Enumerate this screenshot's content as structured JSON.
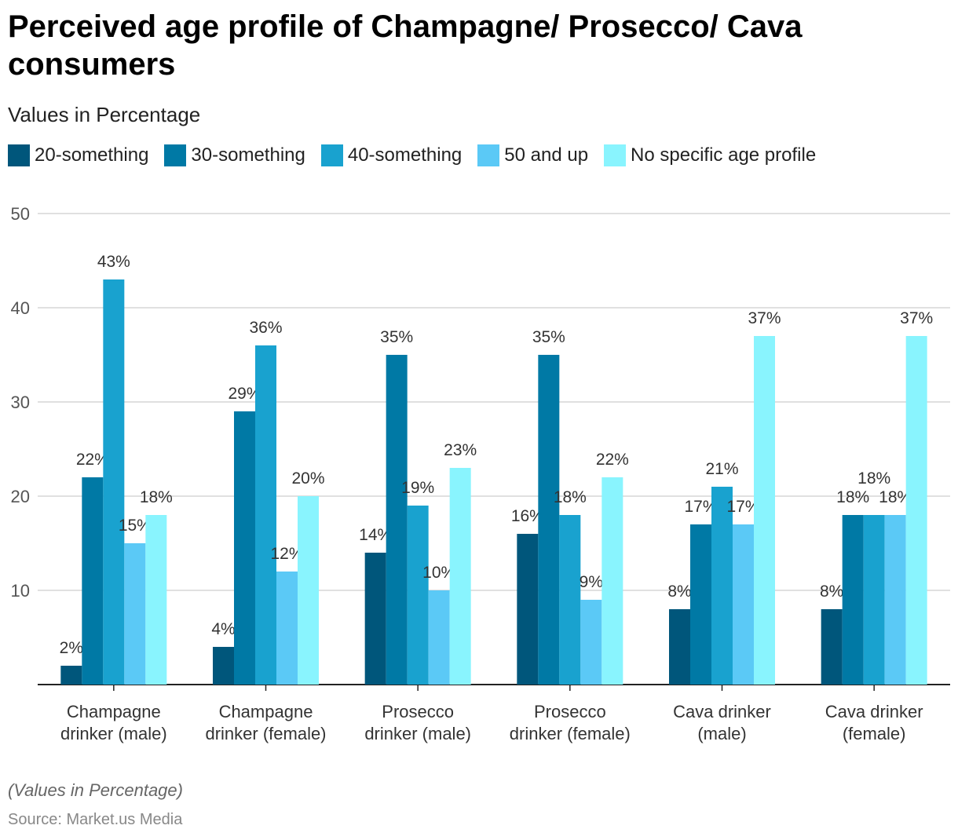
{
  "chart_data": {
    "type": "bar",
    "title": "Perceived age profile of Champagne/ Prosecco/ Cava consumers",
    "subtitle": "Values in Percentage",
    "categories": [
      [
        "Champagne",
        "drinker (male)"
      ],
      [
        "Champagne",
        "drinker (female)"
      ],
      [
        "Prosecco",
        "drinker (male)"
      ],
      [
        "Prosecco",
        "drinker (female)"
      ],
      [
        "Cava drinker",
        "(male)"
      ],
      [
        "Cava drinker",
        "(female)"
      ]
    ],
    "series": [
      {
        "name": "20-something",
        "color": "#00567b",
        "values": [
          2,
          4,
          14,
          16,
          8,
          8
        ]
      },
      {
        "name": "30-something",
        "color": "#0079a5",
        "values": [
          22,
          29,
          35,
          35,
          17,
          18
        ]
      },
      {
        "name": "40-something",
        "color": "#19a2cf",
        "values": [
          43,
          36,
          19,
          18,
          21,
          18
        ]
      },
      {
        "name": "50 and up",
        "color": "#5bc9f6",
        "values": [
          15,
          12,
          10,
          9,
          17,
          18
        ]
      },
      {
        "name": "No specific age profile",
        "color": "#89f4fe",
        "values": [
          18,
          20,
          23,
          22,
          37,
          37
        ]
      }
    ],
    "ylim": [
      0,
      50
    ],
    "yticks": [
      10,
      20,
      30,
      40,
      50
    ],
    "value_suffix": "%",
    "grid": true,
    "legend": "top-left"
  },
  "footer": {
    "note": "(Values in Percentage)",
    "source": "Source: Market.us Media"
  }
}
